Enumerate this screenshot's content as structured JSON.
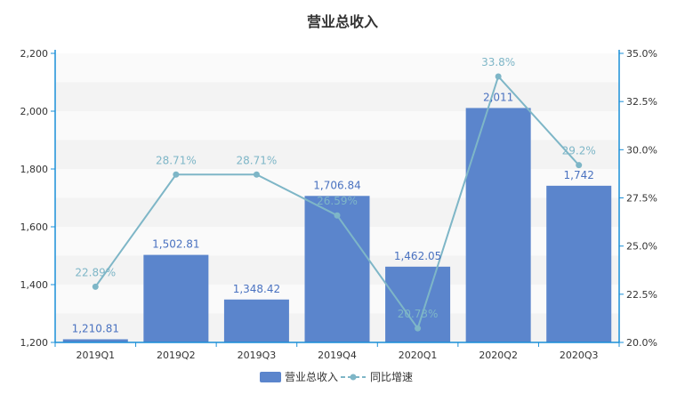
{
  "chart_data": {
    "type": "bar",
    "title": "营业总收入",
    "categories": [
      "2019Q1",
      "2019Q2",
      "2019Q3",
      "2019Q4",
      "2020Q1",
      "2020Q2",
      "2020Q3"
    ],
    "series": [
      {
        "name": "营业总收入",
        "type": "bar",
        "axis": "left",
        "values": [
          1210.81,
          1502.81,
          1348.42,
          1706.84,
          1462.05,
          2011,
          1742
        ],
        "labels": [
          "1,210.81",
          "1,502.81",
          "1,348.42",
          "1,706.84",
          "1,462.05",
          "2,011",
          "1,742"
        ]
      },
      {
        "name": "同比增速",
        "type": "line",
        "axis": "right",
        "values": [
          22.89,
          28.71,
          28.71,
          26.59,
          20.73,
          33.8,
          29.2
        ],
        "labels": [
          "22.89%",
          "28.71%",
          "28.71%",
          "26.59%",
          "20.73%",
          "33.8%",
          "29.2%"
        ]
      }
    ],
    "y_left": {
      "min": 1200,
      "max": 2200,
      "ticks": [
        1200,
        1400,
        1600,
        1800,
        2000,
        2200
      ],
      "tick_labels": [
        "1,200",
        "1,400",
        "1,600",
        "1,800",
        "2,000",
        "2,200"
      ]
    },
    "y_right": {
      "min": 20,
      "max": 35,
      "ticks": [
        20,
        22.5,
        25,
        27.5,
        30,
        32.5,
        35
      ],
      "tick_labels": [
        "20.0%",
        "22.5%",
        "25.0%",
        "27.5%",
        "30.0%",
        "32.5%",
        "35.0%"
      ]
    },
    "legend_position": "bottom",
    "colors": {
      "bar": "#5b85cc",
      "line": "#7eb6c7",
      "axis": "#1a8fd8",
      "band_light": "#fafafa",
      "band_dark": "#f3f3f3"
    }
  }
}
